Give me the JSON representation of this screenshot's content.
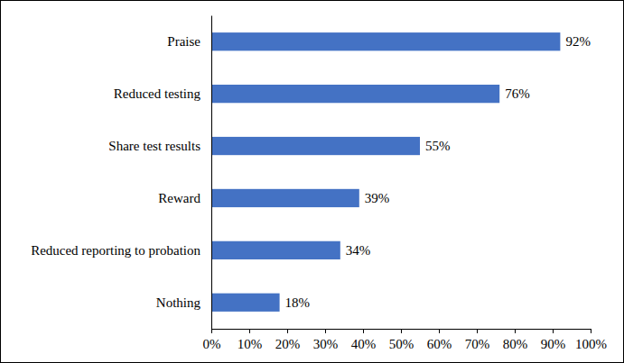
{
  "chart_data": {
    "type": "bar",
    "orientation": "horizontal",
    "categories": [
      "Praise",
      "Reduced testing",
      "Share test results",
      "Reward",
      "Reduced reporting to probation",
      "Nothing"
    ],
    "values": [
      92,
      76,
      55,
      39,
      34,
      18
    ],
    "value_labels": [
      "92%",
      "76%",
      "55%",
      "39%",
      "34%",
      "18%"
    ],
    "data_labels": true,
    "color": "#4472c4",
    "xlim": [
      0,
      100
    ],
    "xticks": [
      {
        "value": 0,
        "label": "0%"
      },
      {
        "value": 10,
        "label": "10%"
      },
      {
        "value": 20,
        "label": "20%"
      },
      {
        "value": 30,
        "label": "30%"
      },
      {
        "value": 40,
        "label": "40%"
      },
      {
        "value": 50,
        "label": "50%"
      },
      {
        "value": 60,
        "label": "60%"
      },
      {
        "value": 70,
        "label": "70%"
      },
      {
        "value": 80,
        "label": "80%"
      },
      {
        "value": 90,
        "label": "90%"
      },
      {
        "value": 100,
        "label": "100%"
      }
    ],
    "grid": false
  }
}
